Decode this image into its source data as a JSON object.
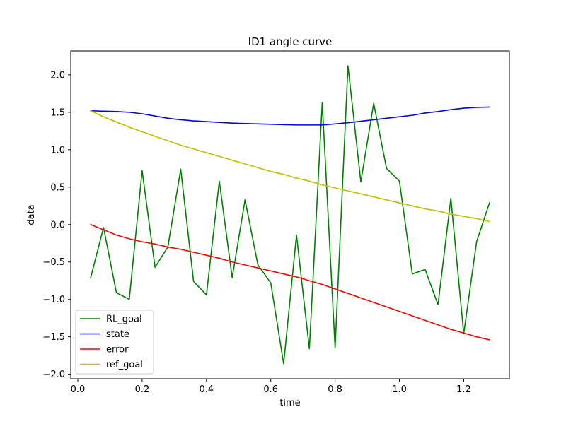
{
  "chart_data": {
    "type": "line",
    "title": "ID1 angle curve",
    "xlabel": "time",
    "ylabel": "data",
    "xlim": [
      -0.022,
      1.342
    ],
    "ylim": [
      -2.06,
      2.32
    ],
    "xticks": [
      0.0,
      0.2,
      0.4,
      0.6,
      0.8,
      1.0,
      1.2
    ],
    "xtick_labels": [
      "0.0",
      "0.2",
      "0.4",
      "0.6",
      "0.8",
      "1.0",
      "1.2"
    ],
    "yticks": [
      -2.0,
      -1.5,
      -1.0,
      -0.5,
      0.0,
      0.5,
      1.0,
      1.5,
      2.0
    ],
    "ytick_labels": [
      "−2.0",
      "−1.5",
      "−1.0",
      "−0.5",
      "0.0",
      "0.5",
      "1.0",
      "1.5",
      "2.0"
    ],
    "grid": false,
    "legend_position": "lower-left",
    "x": [
      0.04,
      0.08,
      0.12,
      0.16,
      0.2,
      0.24,
      0.28,
      0.32,
      0.36,
      0.4,
      0.44,
      0.48,
      0.52,
      0.56,
      0.6,
      0.64,
      0.68,
      0.72,
      0.76,
      0.8,
      0.84,
      0.88,
      0.92,
      0.96,
      1.0,
      1.04,
      1.08,
      1.12,
      1.16,
      1.2,
      1.24,
      1.28
    ],
    "series": [
      {
        "name": "RL_goal",
        "color": "#008000",
        "values": [
          -0.71,
          -0.04,
          -0.91,
          -1.0,
          0.72,
          -0.57,
          -0.3,
          0.74,
          -0.76,
          -0.94,
          0.58,
          -0.71,
          0.33,
          -0.54,
          -0.78,
          -1.86,
          -0.14,
          -1.66,
          1.63,
          -1.65,
          2.12,
          0.57,
          1.62,
          0.75,
          0.58,
          -0.66,
          -0.6,
          -1.07,
          0.35,
          -1.46,
          -0.23,
          0.29
        ]
      },
      {
        "name": "state",
        "color": "#0000ff",
        "values": [
          1.52,
          1.515,
          1.51,
          1.5,
          1.48,
          1.45,
          1.42,
          1.4,
          1.385,
          1.375,
          1.365,
          1.355,
          1.35,
          1.345,
          1.34,
          1.335,
          1.33,
          1.33,
          1.33,
          1.345,
          1.36,
          1.38,
          1.4,
          1.42,
          1.44,
          1.46,
          1.49,
          1.51,
          1.535,
          1.555,
          1.565,
          1.57
        ]
      },
      {
        "name": "error",
        "color": "#ff0000",
        "values": [
          0.0,
          -0.07,
          -0.14,
          -0.19,
          -0.23,
          -0.26,
          -0.3,
          -0.33,
          -0.37,
          -0.41,
          -0.45,
          -0.5,
          -0.54,
          -0.58,
          -0.62,
          -0.66,
          -0.7,
          -0.75,
          -0.8,
          -0.86,
          -0.92,
          -0.98,
          -1.04,
          -1.1,
          -1.16,
          -1.22,
          -1.28,
          -1.34,
          -1.4,
          -1.45,
          -1.5,
          -1.54
        ]
      },
      {
        "name": "ref_goal",
        "color": "#bfbf00",
        "values": [
          1.52,
          1.44,
          1.37,
          1.3,
          1.24,
          1.18,
          1.12,
          1.06,
          1.01,
          0.96,
          0.91,
          0.86,
          0.81,
          0.76,
          0.71,
          0.67,
          0.62,
          0.58,
          0.53,
          0.49,
          0.45,
          0.41,
          0.37,
          0.33,
          0.29,
          0.25,
          0.21,
          0.18,
          0.14,
          0.11,
          0.08,
          0.04
        ]
      }
    ]
  }
}
